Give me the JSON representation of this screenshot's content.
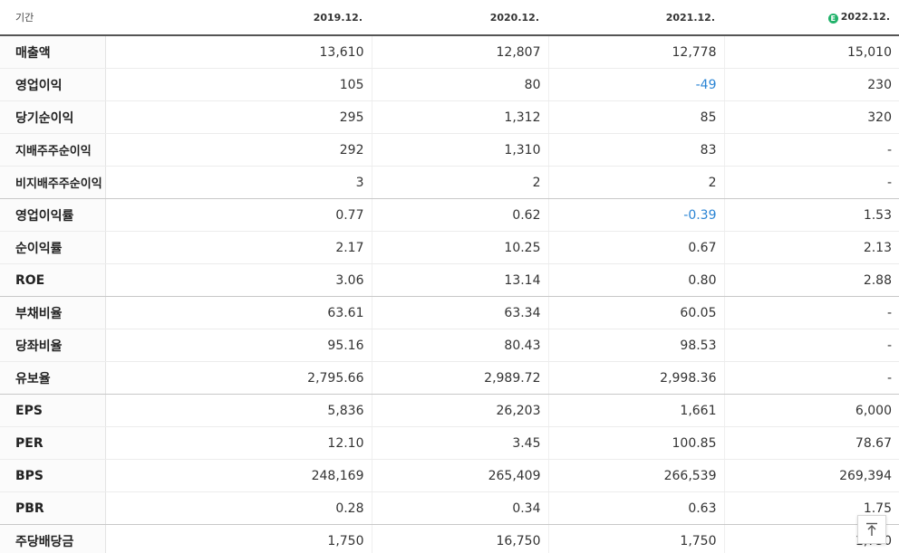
{
  "header": {
    "label": "기간",
    "periods": [
      "2019.12.",
      "2020.12.",
      "2021.12.",
      "2022.12."
    ],
    "estimate_badge": "E"
  },
  "rows": [
    {
      "label": "매출액",
      "values": [
        "13,610",
        "12,807",
        "12,778",
        "15,010"
      ]
    },
    {
      "label": "영업이익",
      "values": [
        "105",
        "80",
        "-49",
        "230"
      ]
    },
    {
      "label": "당기순이익",
      "values": [
        "295",
        "1,312",
        "85",
        "320"
      ]
    },
    {
      "label": "지배주주순이익",
      "values": [
        "292",
        "1,310",
        "83",
        "-"
      ]
    },
    {
      "label": "비지배주주순이익",
      "values": [
        "3",
        "2",
        "2",
        "-"
      ]
    },
    {
      "label": "영업이익률",
      "values": [
        "0.77",
        "0.62",
        "-0.39",
        "1.53"
      ]
    },
    {
      "label": "순이익률",
      "values": [
        "2.17",
        "10.25",
        "0.67",
        "2.13"
      ]
    },
    {
      "label": "ROE",
      "values": [
        "3.06",
        "13.14",
        "0.80",
        "2.88"
      ]
    },
    {
      "label": "부채비율",
      "values": [
        "63.61",
        "63.34",
        "60.05",
        "-"
      ]
    },
    {
      "label": "당좌비율",
      "values": [
        "95.16",
        "80.43",
        "98.53",
        "-"
      ]
    },
    {
      "label": "유보율",
      "values": [
        "2,795.66",
        "2,989.72",
        "2,998.36",
        "-"
      ]
    },
    {
      "label": "EPS",
      "values": [
        "5,836",
        "26,203",
        "1,661",
        "6,000"
      ]
    },
    {
      "label": "PER",
      "values": [
        "12.10",
        "3.45",
        "100.85",
        "78.67"
      ]
    },
    {
      "label": "BPS",
      "values": [
        "248,169",
        "265,409",
        "266,539",
        "269,394"
      ]
    },
    {
      "label": "PBR",
      "values": [
        "0.28",
        "0.34",
        "0.63",
        "1.75"
      ]
    },
    {
      "label": "주당배당금",
      "values": [
        "1,750",
        "16,750",
        "1,750",
        "1,750"
      ]
    }
  ],
  "colors": {
    "negative": "#2a84d4",
    "estimate_badge": "#21b26a"
  },
  "icons": {
    "scroll_top": "arrow-up-to-line-icon"
  }
}
